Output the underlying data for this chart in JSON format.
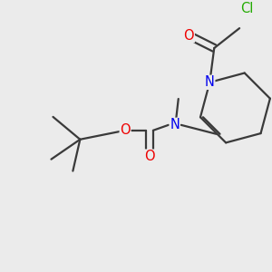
{
  "bg_color": "#ebebeb",
  "bond_color": "#3a3a3a",
  "atom_colors": {
    "O": "#ee0000",
    "N": "#0000ee",
    "Cl": "#22aa00"
  },
  "figsize": [
    3.0,
    3.0
  ],
  "dpi": 100,
  "bond_lw": 1.6,
  "font_size": 10.5
}
